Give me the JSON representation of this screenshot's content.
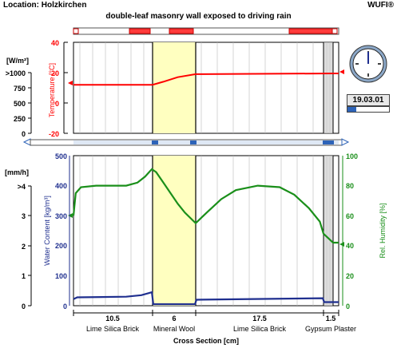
{
  "header": {
    "location": "Location: Holzkirchen",
    "brand": "WUFI®",
    "title": "double-leaf masonry wall exposed to driving rain"
  },
  "date": {
    "value": "19.03.01",
    "progress_fraction": 0.21
  },
  "top_chart": {
    "left_axis_label": "Temperature [°C]",
    "left_ticks": [
      "40",
      "20",
      "0",
      "-20"
    ],
    "rad_unit": "[W/m²]",
    "rad_ticks": [
      ">1000",
      "750",
      "500",
      "250",
      "0"
    ],
    "colors": {
      "temperature": "#ff0000",
      "axis": "#ff0000"
    }
  },
  "bottom_chart": {
    "unit_left": "[mm/h]",
    "rain_ticks": [
      ">4",
      "3",
      "2",
      "1",
      "0"
    ],
    "water_axis_label": "Water Content [kg/m³]",
    "water_ticks": [
      "500",
      "400",
      "300",
      "200",
      "100",
      "0"
    ],
    "rh_axis_label": "Rel. Humidity [%]",
    "rh_ticks": [
      "100",
      "80",
      "60",
      "40",
      "20",
      "0"
    ],
    "colors": {
      "water": "#1f2f8f",
      "rh": "#1a8f1a"
    }
  },
  "layers": [
    {
      "thickness": "10.5",
      "name": "Lime Silica Brick"
    },
    {
      "thickness": "6",
      "name": "Mineral Wool"
    },
    {
      "thickness": "17.5",
      "name": "Lime Silica Brick"
    },
    {
      "thickness": "1.5",
      "name": "Gypsum Plaster"
    }
  ],
  "x_axis_label": "Cross Section [cm]",
  "chart_data": [
    {
      "type": "line",
      "title": "",
      "xlabel": "Cross Section [cm]",
      "ylabel": "Temperature [°C]",
      "ylim": [
        -20,
        40
      ],
      "x_range": [
        0,
        35.5
      ],
      "series": [
        {
          "name": "Temperature",
          "x": [
            0,
            10.5,
            12,
            14,
            16.5,
            35.5
          ],
          "y": [
            12,
            12,
            14,
            17,
            19,
            19.5
          ]
        }
      ]
    },
    {
      "type": "line",
      "title": "",
      "xlabel": "Cross Section [cm]",
      "ylabel": "Water Content [kg/m³]",
      "ylim": [
        0,
        500
      ],
      "x_range": [
        0,
        35.5
      ],
      "series": [
        {
          "name": "Water Content",
          "x": [
            0,
            0.5,
            7,
            9,
            10,
            10.4,
            10.6,
            16.4,
            16.6,
            33.9,
            34.1,
            35.5
          ],
          "y": [
            22,
            28,
            30,
            35,
            42,
            45,
            5,
            5,
            20,
            25,
            12,
            12
          ]
        },
        {
          "name": "Rel. Humidity",
          "x": [
            0,
            0.3,
            1,
            3,
            5,
            7,
            8.5,
            9.5,
            10.4,
            11,
            12,
            13,
            14,
            15,
            16.5,
            18,
            20,
            22,
            25,
            28,
            30,
            32,
            33.5,
            34,
            35.5
          ],
          "y": [
            60,
            75,
            79,
            80,
            80,
            80,
            82,
            86,
            91,
            89,
            82,
            75,
            68,
            62,
            55,
            62,
            71,
            77,
            80,
            79,
            74,
            65,
            56,
            48,
            42
          ]
        }
      ]
    }
  ]
}
